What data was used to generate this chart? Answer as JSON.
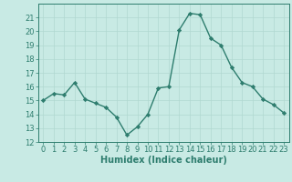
{
  "x": [
    0,
    1,
    2,
    3,
    4,
    5,
    6,
    7,
    8,
    9,
    10,
    11,
    12,
    13,
    14,
    15,
    16,
    17,
    18,
    19,
    20,
    21,
    22,
    23
  ],
  "y": [
    15.0,
    15.5,
    15.4,
    16.3,
    15.1,
    14.8,
    14.5,
    13.8,
    12.5,
    13.1,
    14.0,
    15.9,
    16.0,
    20.1,
    21.3,
    21.2,
    19.5,
    19.0,
    17.4,
    16.3,
    16.0,
    15.1,
    14.7,
    14.1
  ],
  "line_color": "#2e7d6e",
  "marker": "D",
  "markersize": 2.2,
  "linewidth": 1.0,
  "bg_color": "#c8eae4",
  "grid_color": "#b0d8d0",
  "xlabel": "Humidex (Indice chaleur)",
  "xlabel_fontsize": 7,
  "tick_fontsize": 6,
  "ylim": [
    12,
    22
  ],
  "yticks": [
    12,
    13,
    14,
    15,
    16,
    17,
    18,
    19,
    20,
    21
  ],
  "xlim": [
    -0.5,
    23.5
  ],
  "xticks": [
    0,
    1,
    2,
    3,
    4,
    5,
    6,
    7,
    8,
    9,
    10,
    11,
    12,
    13,
    14,
    15,
    16,
    17,
    18,
    19,
    20,
    21,
    22,
    23
  ]
}
